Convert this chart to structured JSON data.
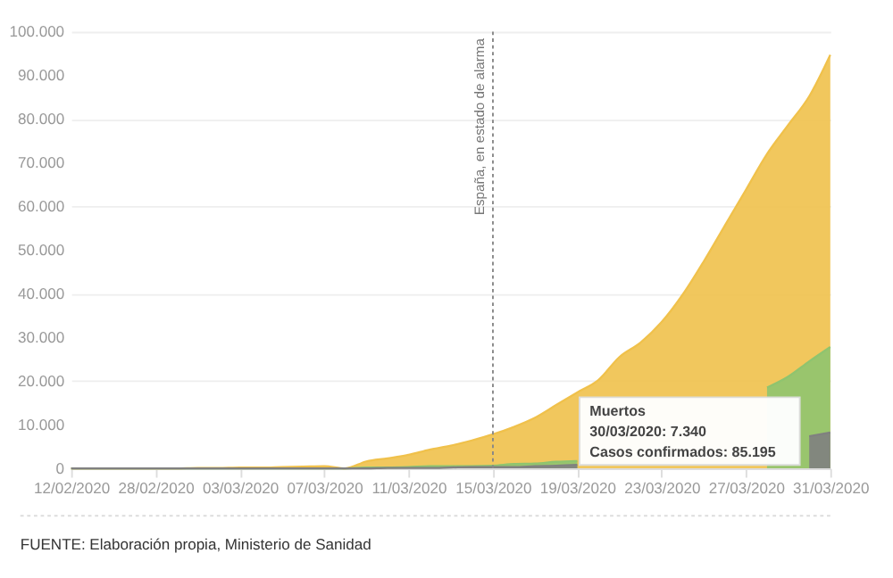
{
  "chart_data": {
    "type": "area",
    "categories": [
      "12/02/2020",
      null,
      null,
      null,
      "28/02/2020",
      null,
      null,
      null,
      "03/03/2020",
      null,
      null,
      null,
      "07/03/2020",
      null,
      null,
      null,
      "11/03/2020",
      null,
      null,
      null,
      "15/03/2020",
      null,
      null,
      null,
      "19/03/2020",
      null,
      null,
      null,
      "23/03/2020",
      null,
      null,
      null,
      "27/03/2020",
      null,
      null,
      null,
      "31/03/2020"
    ],
    "series": [
      {
        "color": "#f0c14b",
        "values": [
          0,
          0,
          0,
          0,
          0,
          0,
          100,
          100,
          200,
          200,
          300,
          400,
          500,
          0,
          1600,
          2300,
          3100,
          4300,
          5200,
          6400,
          7800,
          9500,
          11600,
          14500,
          17400,
          20200,
          25500,
          28800,
          33500,
          39800,
          47400,
          55600,
          63800,
          72000,
          78600,
          85195,
          94700
        ]
      },
      {
        "color": "#8fc46f",
        "values": [
          0,
          0,
          0,
          0,
          0,
          0,
          0,
          0,
          0,
          0,
          0,
          0,
          0,
          0,
          200,
          200,
          300,
          500,
          500,
          500,
          600,
          1000,
          1100,
          1500,
          1700,
          null,
          null,
          null,
          null,
          null,
          null,
          null,
          null,
          18500,
          21000,
          24500,
          27800
        ]
      },
      {
        "color": "#808080",
        "values": [
          0,
          0,
          0,
          0,
          0,
          0,
          0,
          0,
          0,
          0,
          0,
          0,
          0,
          0,
          0,
          100,
          100,
          100,
          200,
          300,
          300,
          300,
          500,
          600,
          800,
          null,
          null,
          null,
          null,
          null,
          null,
          null,
          null,
          null,
          null,
          7340,
          8200
        ]
      }
    ],
    "ylim": [
      0,
      100000
    ],
    "yticks": [
      0,
      {
        "value": 10000,
        "label": "10.000"
      },
      {
        "value": 20000,
        "label": "20.000"
      },
      {
        "value": 30000,
        "label": "30.000"
      },
      {
        "value": 40000,
        "label": "40.000"
      },
      {
        "value": 50000,
        "label": "50.000"
      },
      {
        "value": 60000,
        "label": "60.000"
      },
      {
        "value": 70000,
        "label": "70.000"
      },
      {
        "value": 80000,
        "label": "80.000"
      },
      {
        "value": 90000,
        "label": "90.000"
      },
      {
        "value": 100000,
        "label": "100.000"
      }
    ],
    "grid": "y",
    "ref_lines": [
      {
        "axis": "x",
        "value": "15/03/2020",
        "label": "España, en estado de alarma",
        "color": "#888888",
        "line_style": "dotted"
      }
    ],
    "annotations": [
      "Muertos",
      "30/03/2020: 7.340",
      "Casos confirmados: 85.195",
      "FUENTE: Elaboración propia, Ministerio de Sanidad"
    ]
  }
}
